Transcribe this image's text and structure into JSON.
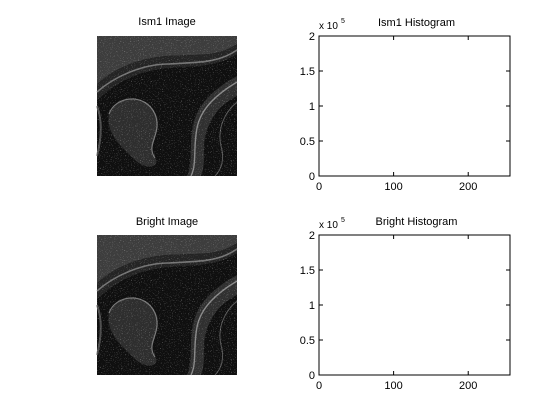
{
  "figure": {
    "background": "#ffffff"
  },
  "panels": {
    "ism1_image": {
      "title": "Ism1 Image"
    },
    "bright_image": {
      "title": "Bright Image"
    }
  },
  "chart_data": [
    {
      "type": "bar",
      "title": "Ism1 Histogram",
      "xlabel": "",
      "ylabel": "",
      "xlim": [
        0,
        256
      ],
      "ylim": [
        0,
        200000
      ],
      "xticks": [
        0,
        100,
        200
      ],
      "yticks": [
        0,
        0.5,
        1,
        1.5,
        2
      ],
      "ytick_multiplier": "x 10",
      "ytick_exponent": "5",
      "series": [],
      "grid": false
    },
    {
      "type": "bar",
      "title": "Bright Histogram",
      "xlabel": "",
      "ylabel": "",
      "xlim": [
        0,
        256
      ],
      "ylim": [
        0,
        200000
      ],
      "xticks": [
        0,
        100,
        200
      ],
      "yticks": [
        0,
        0.5,
        1,
        1.5,
        2
      ],
      "ytick_multiplier": "x 10",
      "ytick_exponent": "5",
      "series": [],
      "grid": false
    }
  ]
}
